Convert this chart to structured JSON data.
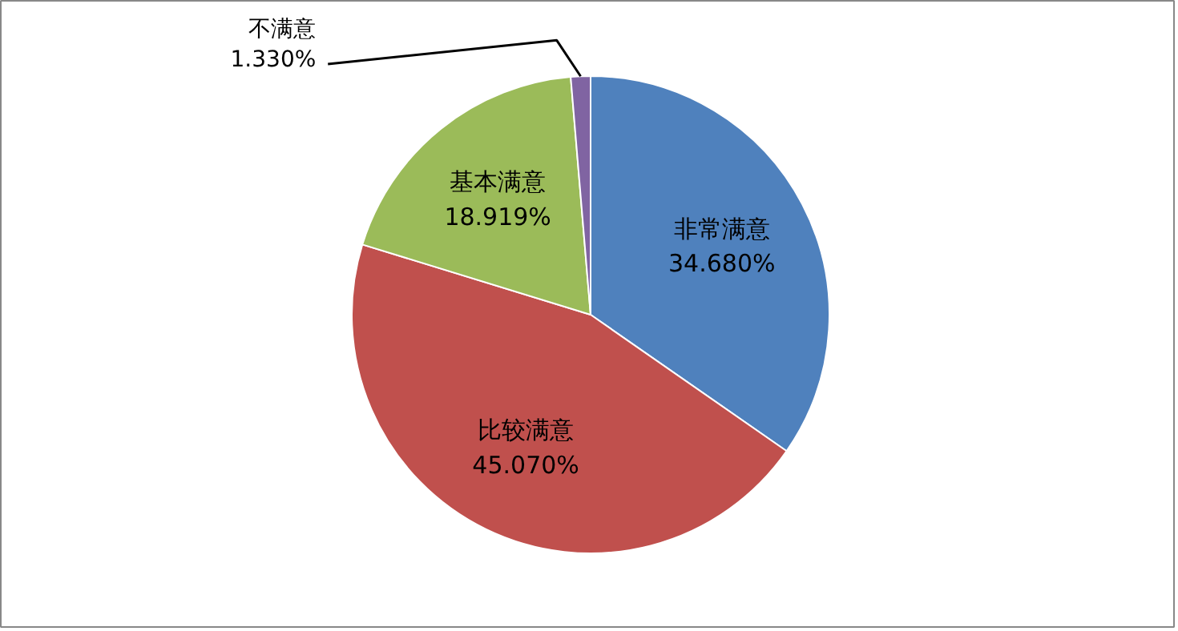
{
  "chart_data": {
    "type": "pie",
    "categories": [
      "非常满意",
      "比较满意",
      "基本满意",
      "不满意"
    ],
    "values": [
      34.68,
      45.07,
      18.919,
      1.33
    ],
    "colors": [
      "#4f81bd",
      "#c0504d",
      "#9bbb59",
      "#8064a2"
    ],
    "value_labels": [
      "34.680%",
      "45.070%",
      "18.919%",
      "1.330%"
    ]
  }
}
